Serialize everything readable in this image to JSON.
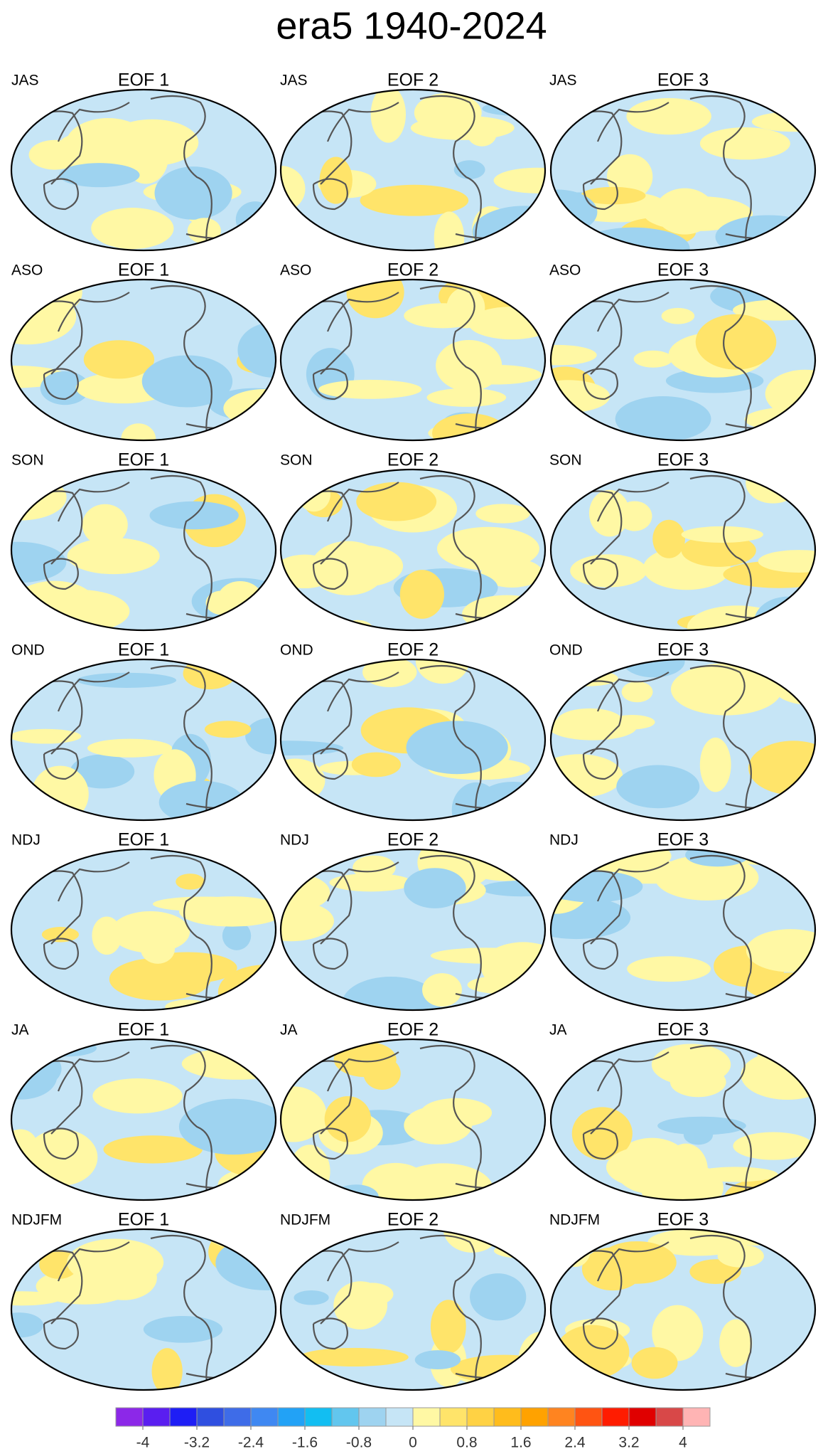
{
  "title": "era5 1940-2024",
  "panels": [
    [
      {
        "season": "JAS",
        "label": "EOF 1"
      },
      {
        "season": "JAS",
        "label": "EOF 2"
      },
      {
        "season": "JAS",
        "label": "EOF 3"
      }
    ],
    [
      {
        "season": "ASO",
        "label": "EOF 1"
      },
      {
        "season": "ASO",
        "label": "EOF 2"
      },
      {
        "season": "ASO",
        "label": "EOF 3"
      }
    ],
    [
      {
        "season": "SON",
        "label": "EOF 1"
      },
      {
        "season": "SON",
        "label": "EOF 2"
      },
      {
        "season": "SON",
        "label": "EOF 3"
      }
    ],
    [
      {
        "season": "OND",
        "label": "EOF 1"
      },
      {
        "season": "OND",
        "label": "EOF 2"
      },
      {
        "season": "OND",
        "label": "EOF 3"
      }
    ],
    [
      {
        "season": "NDJ",
        "label": "EOF 1"
      },
      {
        "season": "NDJ",
        "label": "EOF 2"
      },
      {
        "season": "NDJ",
        "label": "EOF 3"
      }
    ],
    [
      {
        "season": "JA",
        "label": "EOF 1"
      },
      {
        "season": "JA",
        "label": "EOF 2"
      },
      {
        "season": "JA",
        "label": "EOF 3"
      }
    ],
    [
      {
        "season": "NDJFM",
        "label": "EOF 1"
      },
      {
        "season": "NDJFM",
        "label": "EOF 2"
      },
      {
        "season": "NDJFM",
        "label": "EOF 3"
      }
    ]
  ],
  "colorbar": {
    "lim": [
      -4.4,
      4.4
    ],
    "ticks": [
      -4,
      -3.2,
      -2.4,
      -1.6,
      -0.8,
      0,
      0.8,
      1.6,
      2.4,
      3.2,
      4
    ],
    "colors": [
      "#8c28e8",
      "#5a1ef0",
      "#1e1ef5",
      "#2f4fe0",
      "#3e6ce8",
      "#3f88f2",
      "#22a2f6",
      "#12bef2",
      "#62c6ee",
      "#9ed3f0",
      "#c6e5f6",
      "#fff8a4",
      "#ffe46a",
      "#ffd244",
      "#ffbc1c",
      "#ffa200",
      "#ff8420",
      "#ff5412",
      "#ff1c00",
      "#e00000",
      "#d84848",
      "#ffb4b4"
    ]
  }
}
